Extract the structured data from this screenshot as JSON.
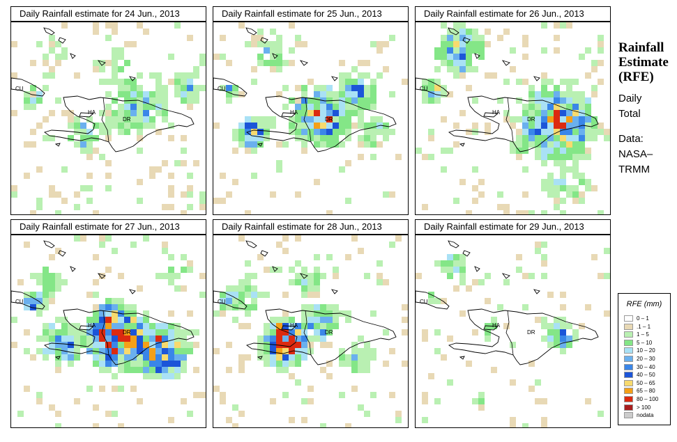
{
  "panels": [
    {
      "title": "Daily Rainfall estimate for  24 Jun., 2013"
    },
    {
      "title": "Daily Rainfall estimate for  25 Jun., 2013"
    },
    {
      "title": "Daily Rainfall estimate for  26 Jun., 2013"
    },
    {
      "title": "Daily Rainfall estimate for  27 Jun., 2013"
    },
    {
      "title": "Daily Rainfall estimate for  28 Jun., 2013"
    },
    {
      "title": "Daily Rainfall estimate for  29 Jun., 2013"
    }
  ],
  "map_labels": {
    "cu": "CU",
    "ha": "HA",
    "dr": "DR"
  },
  "side": {
    "title_line1": "Rainfall",
    "title_line2": "Estimate",
    "title_line3": "(RFE)",
    "daily": "Daily",
    "total": "Total",
    "data_label": "Data:",
    "source_line1": "NASA–",
    "source_line2": "TRMM"
  },
  "legend": {
    "title": "RFE (mm)",
    "items": [
      {
        "label": "0 – 1",
        "color": "#ffffff"
      },
      {
        "label": ".1 – 1",
        "color": "#e8d9b5"
      },
      {
        "label": "1 – 5",
        "color": "#b9f0b2"
      },
      {
        "label": "5 – 10",
        "color": "#84e687"
      },
      {
        "label": "10 – 20",
        "color": "#a9e1f5"
      },
      {
        "label": "20 – 30",
        "color": "#6ab0ee"
      },
      {
        "label": "30 – 40",
        "color": "#3a86e8"
      },
      {
        "label": "40 – 50",
        "color": "#1c55d8"
      },
      {
        "label": "50 – 65",
        "color": "#f7da6e"
      },
      {
        "label": "65 – 80",
        "color": "#f4a018"
      },
      {
        "label": "80 – 100",
        "color": "#dc2a10"
      },
      {
        "label": "> 100",
        "color": "#a81e1e"
      },
      {
        "label": "nodata",
        "color": "#cccccc"
      }
    ]
  }
}
